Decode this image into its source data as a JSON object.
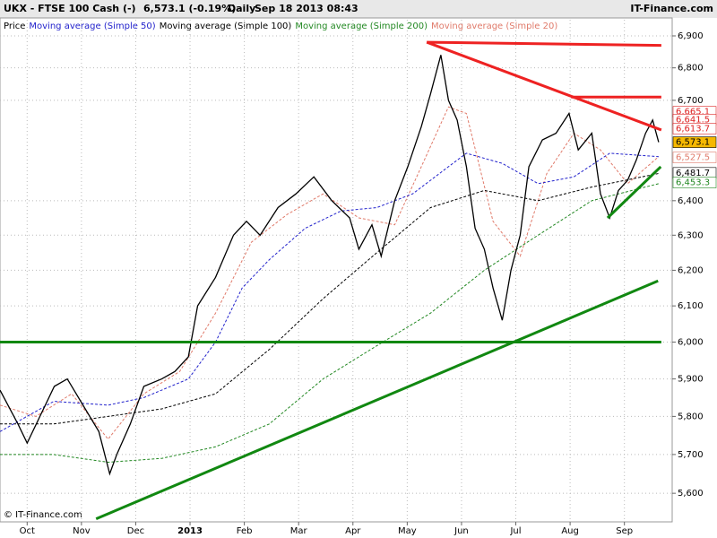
{
  "chart_data": {
    "type": "line",
    "symbol": "UKX - FTSE 100 Cash (-)",
    "quote": "6,573.1 (-0.19%)",
    "period": "Daily",
    "timestamp": "Sep 18 2013 08:43",
    "brand": "IT-Finance.com",
    "copyright": "© IT-Finance.com",
    "log_scale": true,
    "grid": true,
    "xlim": [
      -0.5,
      11.88
    ],
    "xticks": [
      {
        "value": 0,
        "label": "Oct"
      },
      {
        "value": 1,
        "label": "Nov"
      },
      {
        "value": 2,
        "label": "Dec"
      },
      {
        "value": 3,
        "label": "2013"
      },
      {
        "value": 4,
        "label": "Feb"
      },
      {
        "value": 5,
        "label": "Mar"
      },
      {
        "value": 6,
        "label": "Apr"
      },
      {
        "value": 7,
        "label": "May"
      },
      {
        "value": 8,
        "label": "Jun"
      },
      {
        "value": 9,
        "label": "Jul"
      },
      {
        "value": 10,
        "label": "Aug"
      },
      {
        "value": 11,
        "label": "Sep"
      }
    ],
    "ylim": [
      5532,
      6951
    ],
    "yticks": [
      {
        "value": 5600,
        "label": "5,600"
      },
      {
        "value": 5700,
        "label": "5,700"
      },
      {
        "value": 5800,
        "label": "5,800"
      },
      {
        "value": 5900,
        "label": "5,900"
      },
      {
        "value": 6000,
        "label": "6,000"
      },
      {
        "value": 6100,
        "label": "6,100"
      },
      {
        "value": 6200,
        "label": "6,200"
      },
      {
        "value": 6300,
        "label": "6,300"
      },
      {
        "value": 6400,
        "label": "6,400"
      },
      {
        "value": 6700,
        "label": "6,700"
      },
      {
        "value": 6800,
        "label": "6,800"
      },
      {
        "value": 6900,
        "label": "6,900"
      }
    ],
    "series": [
      {
        "name": "Price",
        "color": "#000000",
        "style": "solid",
        "x": [
          -0.5,
          -0.17,
          0,
          0.5,
          0.74,
          1.07,
          1.32,
          1.52,
          1.65,
          1.9,
          2.15,
          2.48,
          2.72,
          2.97,
          3.14,
          3.47,
          3.8,
          4.04,
          4.29,
          4.62,
          4.95,
          5.28,
          5.61,
          5.94,
          6.11,
          6.35,
          6.52,
          6.77,
          7.01,
          7.26,
          7.43,
          7.62,
          7.76,
          7.92,
          8.09,
          8.25,
          8.42,
          8.58,
          8.75,
          8.91,
          9.08,
          9.24,
          9.49,
          9.74,
          9.98,
          10.15,
          10.4,
          10.56,
          10.73,
          10.89,
          11.06,
          11.22,
          11.39,
          11.52,
          11.63
        ],
        "values": [
          5870,
          5780,
          5730,
          5880,
          5900,
          5820,
          5760,
          5650,
          5700,
          5780,
          5880,
          5900,
          5920,
          5960,
          6100,
          6180,
          6300,
          6340,
          6300,
          6380,
          6420,
          6470,
          6400,
          6350,
          6260,
          6330,
          6240,
          6400,
          6500,
          6620,
          6720,
          6840,
          6700,
          6640,
          6500,
          6320,
          6260,
          6150,
          6060,
          6200,
          6300,
          6500,
          6580,
          6600,
          6660,
          6550,
          6600,
          6420,
          6350,
          6430,
          6460,
          6520,
          6600,
          6640,
          6573
        ]
      },
      {
        "name": "Moving average (Simple 50)",
        "color": "#2222cc",
        "style": "dashed",
        "x": [
          -0.5,
          0.49,
          1.49,
          2.15,
          2.97,
          3.47,
          3.96,
          4.46,
          5.12,
          5.78,
          6.44,
          7.1,
          7.76,
          8.09,
          8.75,
          9.41,
          10.07,
          10.73,
          11.63
        ],
        "values": [
          5760,
          5840,
          5830,
          5850,
          5900,
          6000,
          6150,
          6230,
          6320,
          6370,
          6380,
          6420,
          6500,
          6540,
          6510,
          6450,
          6470,
          6540,
          6530
        ]
      },
      {
        "name": "Moving average (Simple 100)",
        "color": "#000000",
        "style": "dashed",
        "x": [
          -0.5,
          0.49,
          1.49,
          2.48,
          3.47,
          4.46,
          5.45,
          6.44,
          7.43,
          8.42,
          9.41,
          10.4,
          11.63
        ],
        "values": [
          5780,
          5780,
          5800,
          5820,
          5860,
          5980,
          6120,
          6250,
          6380,
          6430,
          6400,
          6440,
          6480
        ]
      },
      {
        "name": "Moving average (Simple 200)",
        "color": "#228822",
        "style": "dashed",
        "x": [
          -0.5,
          0.49,
          1.49,
          2.48,
          3.47,
          4.46,
          5.45,
          6.44,
          7.43,
          8.42,
          9.41,
          10.4,
          11.63
        ],
        "values": [
          5700,
          5700,
          5680,
          5690,
          5720,
          5780,
          5900,
          5990,
          6080,
          6200,
          6300,
          6400,
          6450
        ]
      },
      {
        "name": "Moving average (Simple 20)",
        "color": "#e07a6a",
        "style": "dashed",
        "x": [
          -0.5,
          0.16,
          0.82,
          1.49,
          2.15,
          2.81,
          3.47,
          4.13,
          4.79,
          5.45,
          6.11,
          6.77,
          7.26,
          7.76,
          8.09,
          8.58,
          9.08,
          9.57,
          10.07,
          10.56,
          11.06,
          11.63
        ],
        "values": [
          5830,
          5800,
          5860,
          5740,
          5860,
          5920,
          6080,
          6280,
          6360,
          6420,
          6350,
          6330,
          6500,
          6680,
          6660,
          6340,
          6240,
          6480,
          6600,
          6550,
          6450,
          6530
        ]
      }
    ],
    "trend_lines": [
      {
        "color": "#ee2222",
        "x": [
          7.36,
          11.68
        ],
        "values": [
          6880,
          6870
        ]
      },
      {
        "color": "#ee2222",
        "x": [
          7.36,
          11.68
        ],
        "values": [
          6880,
          6610
        ]
      },
      {
        "color": "#ee2222",
        "x": [
          10.02,
          11.68
        ],
        "values": [
          6710,
          6710
        ]
      },
      {
        "color": "#118811",
        "x": [
          -0.5,
          11.68
        ],
        "values": [
          6000,
          6000
        ]
      },
      {
        "color": "#118811",
        "x": [
          1.27,
          11.62
        ],
        "values": [
          5535,
          6170
        ]
      },
      {
        "color": "#118811",
        "x": [
          10.69,
          11.67
        ],
        "values": [
          6350,
          6500
        ]
      }
    ],
    "price_tags": [
      {
        "value": 6665.1,
        "label": "6,665.1",
        "color": "#dd2222",
        "fill": "#ffffff"
      },
      {
        "value": 6641.5,
        "label": "6,641.5",
        "color": "#dd2222",
        "fill": "#ffffff"
      },
      {
        "value": 6613.7,
        "label": "6,613.7",
        "color": "#dd2222",
        "fill": "#ffffff"
      },
      {
        "value": 6573.1,
        "label": "6,573.1",
        "color": "#000000",
        "fill": "#f5b800"
      },
      {
        "value": 6527.5,
        "label": "6,527.5",
        "color": "#e07a6a",
        "fill": "#ffffff"
      },
      {
        "value": 6481.7,
        "label": "6,481.7",
        "color": "#000000",
        "fill": "#ffffff"
      },
      {
        "value": 6453.3,
        "label": "6,453.3",
        "color": "#228822",
        "fill": "#ffffff"
      }
    ]
  }
}
